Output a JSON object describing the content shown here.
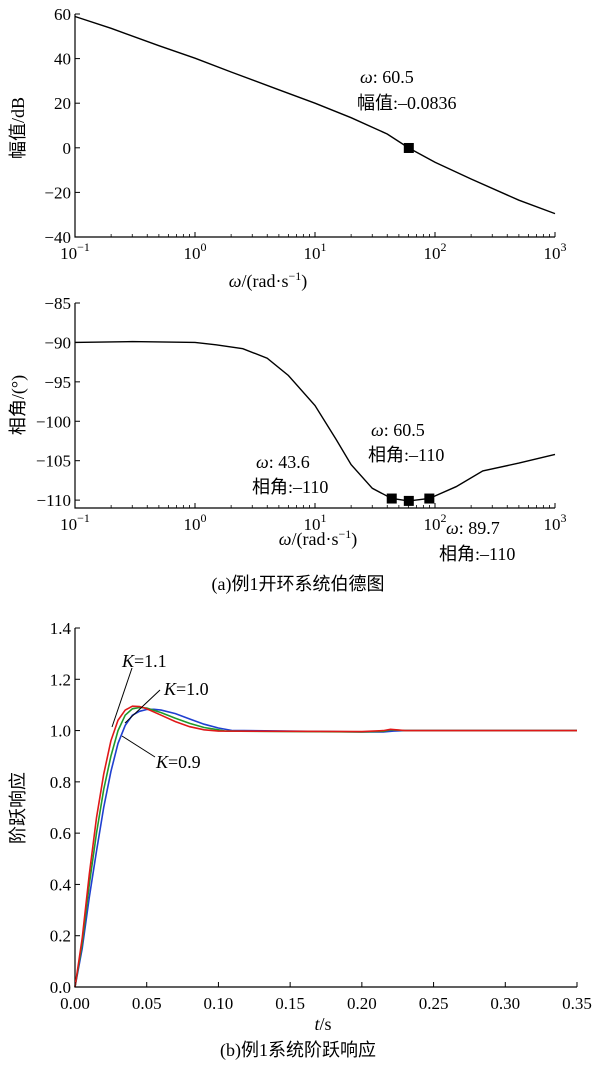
{
  "chart_data": [
    {
      "type": "line",
      "xscale": "log",
      "xlim": [
        0.1,
        1000
      ],
      "ylim": [
        -40,
        60
      ],
      "xlabel": "ω/(rad·s⁻¹)",
      "ylabel": "幅值/dB",
      "xticks": [
        0.1,
        1,
        10,
        100,
        1000
      ],
      "xtick_base": [
        "10",
        "10",
        "10",
        "10",
        "10"
      ],
      "xtick_exp": [
        "−1",
        "0",
        "1",
        "2",
        "3"
      ],
      "yticks": [
        -40,
        -20,
        0,
        20,
        40,
        60
      ],
      "ytick_labels": [
        "−40",
        "−20",
        "0",
        "20",
        "40",
        "60"
      ],
      "series": [
        {
          "x": [
            0.1,
            0.2,
            0.5,
            1,
            2,
            5,
            10,
            20,
            40,
            60.5,
            100,
            200,
            500,
            1000
          ],
          "y": [
            58.9,
            53.6,
            45.8,
            40.2,
            34.0,
            26.0,
            20.0,
            13.5,
            6.2,
            -0.08,
            -6.5,
            -14.0,
            -23.5,
            -29.5
          ]
        }
      ],
      "markers": [
        {
          "x": 60.5,
          "y": -0.08
        }
      ],
      "annotations": [
        {
          "omega_label": "ω: 60.5",
          "value_label": "幅值:–0.0836"
        }
      ]
    },
    {
      "type": "line",
      "xscale": "log",
      "xlim": [
        0.1,
        1000
      ],
      "ylim": [
        -111,
        -85
      ],
      "xlabel": "ω/(rad·s⁻¹)",
      "ylabel": "相角/(°)",
      "xticks": [
        0.1,
        1,
        10,
        100,
        1000
      ],
      "xtick_base": [
        "10",
        "10",
        "10",
        "10",
        "10"
      ],
      "xtick_exp": [
        "−1",
        "0",
        "1",
        "2",
        "3"
      ],
      "yticks": [
        -110,
        -105,
        -100,
        -95,
        -90,
        -85
      ],
      "ytick_labels": [
        "−110",
        "−105",
        "−100",
        "−95",
        "−90",
        "−85"
      ],
      "series": [
        {
          "x": [
            0.1,
            0.3,
            1,
            1.5,
            2.5,
            4,
            6,
            10,
            15,
            20,
            30,
            43.6,
            60.5,
            89.7,
            150,
            250,
            500,
            1000
          ],
          "y": [
            -90.0,
            -89.9,
            -90.0,
            -90.3,
            -90.8,
            -92.0,
            -94.2,
            -98.0,
            -102.3,
            -105.5,
            -108.5,
            -109.8,
            -110.1,
            -109.8,
            -108.3,
            -106.3,
            -105.3,
            -104.2
          ]
        }
      ],
      "markers": [
        {
          "x": 43.6,
          "y": -109.8
        },
        {
          "x": 60.5,
          "y": -110.1
        },
        {
          "x": 89.7,
          "y": -109.8
        }
      ],
      "annotations": [
        {
          "omega_label": "ω: 43.6",
          "value_label": "相角:–110"
        },
        {
          "omega_label": "ω: 60.5",
          "value_label": "相角:–110"
        },
        {
          "omega_label": "ω: 89.7",
          "value_label": "相角:–110"
        }
      ]
    },
    {
      "type": "line",
      "xlim": [
        0,
        0.35
      ],
      "ylim": [
        0,
        1.4
      ],
      "xlabel": "t/s",
      "ylabel": "阶跃响应",
      "xticks": [
        0,
        0.05,
        0.1,
        0.15,
        0.2,
        0.25,
        0.3,
        0.35
      ],
      "xtick_labels": [
        "0.00",
        "0.05",
        "0.10",
        "0.15",
        "0.20",
        "0.25",
        "0.30",
        "0.35"
      ],
      "yticks": [
        0,
        0.2,
        0.4,
        0.6,
        0.8,
        1.0,
        1.2,
        1.4
      ],
      "ytick_labels": [
        "0.0",
        "0.2",
        "0.4",
        "0.6",
        "0.8",
        "1.0",
        "1.2",
        "1.4"
      ],
      "series": [
        {
          "name": "K=0.9",
          "color": "#1f3fd0",
          "x": [
            0,
            0.005,
            0.01,
            0.015,
            0.02,
            0.025,
            0.03,
            0.035,
            0.04,
            0.045,
            0.05,
            0.055,
            0.06,
            0.07,
            0.08,
            0.09,
            0.1,
            0.11,
            0.118,
            0.2,
            0.215,
            0.222,
            0.23,
            0.35
          ],
          "y": [
            0,
            0.15,
            0.35,
            0.53,
            0.7,
            0.84,
            0.95,
            1.02,
            1.06,
            1.075,
            1.082,
            1.083,
            1.08,
            1.066,
            1.045,
            1.025,
            1.01,
            1.0,
            1.0,
            0.995,
            0.995,
            0.998,
            1.0,
            1.0
          ]
        },
        {
          "name": "K=1.0",
          "color": "#1f9a2a",
          "x": [
            0,
            0.005,
            0.01,
            0.015,
            0.02,
            0.025,
            0.03,
            0.035,
            0.04,
            0.045,
            0.05,
            0.06,
            0.07,
            0.08,
            0.09,
            0.1,
            0.105,
            0.2,
            0.215,
            0.22,
            0.23,
            0.35
          ],
          "y": [
            0,
            0.17,
            0.4,
            0.6,
            0.77,
            0.9,
            1.0,
            1.06,
            1.085,
            1.09,
            1.088,
            1.07,
            1.048,
            1.028,
            1.012,
            1.003,
            0.998,
            0.995,
            0.997,
            1.003,
            1.0,
            1.0
          ]
        },
        {
          "name": "K=1.1",
          "color": "#e01818",
          "x": [
            0,
            0.005,
            0.01,
            0.015,
            0.02,
            0.025,
            0.03,
            0.035,
            0.04,
            0.045,
            0.05,
            0.06,
            0.07,
            0.08,
            0.09,
            0.1,
            0.2,
            0.215,
            0.22,
            0.23,
            0.35
          ],
          "y": [
            0,
            0.19,
            0.44,
            0.66,
            0.83,
            0.96,
            1.04,
            1.08,
            1.095,
            1.094,
            1.085,
            1.06,
            1.035,
            1.015,
            1.003,
            0.998,
            0.996,
            1.0,
            1.005,
            1.0,
            1.0
          ]
        }
      ],
      "labels": [
        {
          "prefix": "K",
          "text": "=1.1"
        },
        {
          "prefix": "K",
          "text": "=1.0"
        },
        {
          "prefix": "K",
          "text": "=0.9"
        }
      ]
    }
  ],
  "captions": {
    "a": "(a)例1开环系统伯德图",
    "b": "(b)例1系统阶跃响应"
  }
}
